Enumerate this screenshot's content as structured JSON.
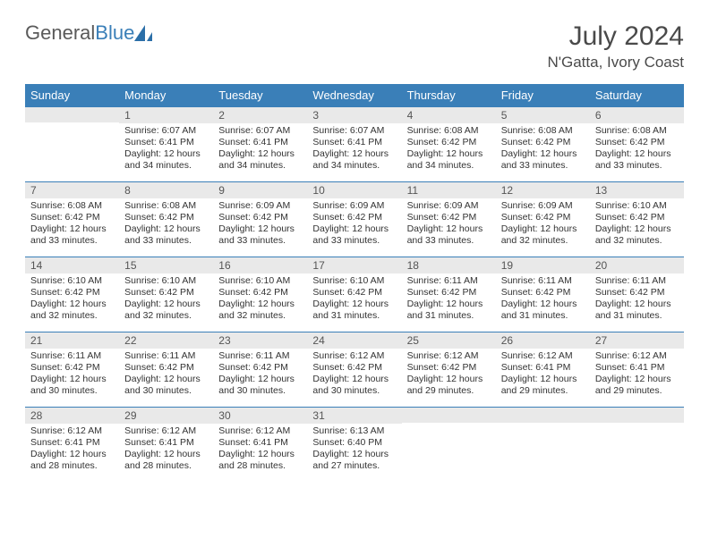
{
  "brand": {
    "part1": "General",
    "part2": "Blue"
  },
  "title": "July 2024",
  "location": "N'Gatta, Ivory Coast",
  "colors": {
    "header_bg": "#3a7fb8",
    "daynum_bg": "#e9e9e9",
    "text": "#333333",
    "title_text": "#4a4a4a",
    "rule": "#3a7fb8"
  },
  "weekdays": [
    "Sunday",
    "Monday",
    "Tuesday",
    "Wednesday",
    "Thursday",
    "Friday",
    "Saturday"
  ],
  "weeks": [
    [
      {
        "n": "",
        "sr": "",
        "ss": "",
        "dl": ""
      },
      {
        "n": "1",
        "sr": "Sunrise: 6:07 AM",
        "ss": "Sunset: 6:41 PM",
        "dl": "Daylight: 12 hours and 34 minutes."
      },
      {
        "n": "2",
        "sr": "Sunrise: 6:07 AM",
        "ss": "Sunset: 6:41 PM",
        "dl": "Daylight: 12 hours and 34 minutes."
      },
      {
        "n": "3",
        "sr": "Sunrise: 6:07 AM",
        "ss": "Sunset: 6:41 PM",
        "dl": "Daylight: 12 hours and 34 minutes."
      },
      {
        "n": "4",
        "sr": "Sunrise: 6:08 AM",
        "ss": "Sunset: 6:42 PM",
        "dl": "Daylight: 12 hours and 34 minutes."
      },
      {
        "n": "5",
        "sr": "Sunrise: 6:08 AM",
        "ss": "Sunset: 6:42 PM",
        "dl": "Daylight: 12 hours and 33 minutes."
      },
      {
        "n": "6",
        "sr": "Sunrise: 6:08 AM",
        "ss": "Sunset: 6:42 PM",
        "dl": "Daylight: 12 hours and 33 minutes."
      }
    ],
    [
      {
        "n": "7",
        "sr": "Sunrise: 6:08 AM",
        "ss": "Sunset: 6:42 PM",
        "dl": "Daylight: 12 hours and 33 minutes."
      },
      {
        "n": "8",
        "sr": "Sunrise: 6:08 AM",
        "ss": "Sunset: 6:42 PM",
        "dl": "Daylight: 12 hours and 33 minutes."
      },
      {
        "n": "9",
        "sr": "Sunrise: 6:09 AM",
        "ss": "Sunset: 6:42 PM",
        "dl": "Daylight: 12 hours and 33 minutes."
      },
      {
        "n": "10",
        "sr": "Sunrise: 6:09 AM",
        "ss": "Sunset: 6:42 PM",
        "dl": "Daylight: 12 hours and 33 minutes."
      },
      {
        "n": "11",
        "sr": "Sunrise: 6:09 AM",
        "ss": "Sunset: 6:42 PM",
        "dl": "Daylight: 12 hours and 33 minutes."
      },
      {
        "n": "12",
        "sr": "Sunrise: 6:09 AM",
        "ss": "Sunset: 6:42 PM",
        "dl": "Daylight: 12 hours and 32 minutes."
      },
      {
        "n": "13",
        "sr": "Sunrise: 6:10 AM",
        "ss": "Sunset: 6:42 PM",
        "dl": "Daylight: 12 hours and 32 minutes."
      }
    ],
    [
      {
        "n": "14",
        "sr": "Sunrise: 6:10 AM",
        "ss": "Sunset: 6:42 PM",
        "dl": "Daylight: 12 hours and 32 minutes."
      },
      {
        "n": "15",
        "sr": "Sunrise: 6:10 AM",
        "ss": "Sunset: 6:42 PM",
        "dl": "Daylight: 12 hours and 32 minutes."
      },
      {
        "n": "16",
        "sr": "Sunrise: 6:10 AM",
        "ss": "Sunset: 6:42 PM",
        "dl": "Daylight: 12 hours and 32 minutes."
      },
      {
        "n": "17",
        "sr": "Sunrise: 6:10 AM",
        "ss": "Sunset: 6:42 PM",
        "dl": "Daylight: 12 hours and 31 minutes."
      },
      {
        "n": "18",
        "sr": "Sunrise: 6:11 AM",
        "ss": "Sunset: 6:42 PM",
        "dl": "Daylight: 12 hours and 31 minutes."
      },
      {
        "n": "19",
        "sr": "Sunrise: 6:11 AM",
        "ss": "Sunset: 6:42 PM",
        "dl": "Daylight: 12 hours and 31 minutes."
      },
      {
        "n": "20",
        "sr": "Sunrise: 6:11 AM",
        "ss": "Sunset: 6:42 PM",
        "dl": "Daylight: 12 hours and 31 minutes."
      }
    ],
    [
      {
        "n": "21",
        "sr": "Sunrise: 6:11 AM",
        "ss": "Sunset: 6:42 PM",
        "dl": "Daylight: 12 hours and 30 minutes."
      },
      {
        "n": "22",
        "sr": "Sunrise: 6:11 AM",
        "ss": "Sunset: 6:42 PM",
        "dl": "Daylight: 12 hours and 30 minutes."
      },
      {
        "n": "23",
        "sr": "Sunrise: 6:11 AM",
        "ss": "Sunset: 6:42 PM",
        "dl": "Daylight: 12 hours and 30 minutes."
      },
      {
        "n": "24",
        "sr": "Sunrise: 6:12 AM",
        "ss": "Sunset: 6:42 PM",
        "dl": "Daylight: 12 hours and 30 minutes."
      },
      {
        "n": "25",
        "sr": "Sunrise: 6:12 AM",
        "ss": "Sunset: 6:42 PM",
        "dl": "Daylight: 12 hours and 29 minutes."
      },
      {
        "n": "26",
        "sr": "Sunrise: 6:12 AM",
        "ss": "Sunset: 6:41 PM",
        "dl": "Daylight: 12 hours and 29 minutes."
      },
      {
        "n": "27",
        "sr": "Sunrise: 6:12 AM",
        "ss": "Sunset: 6:41 PM",
        "dl": "Daylight: 12 hours and 29 minutes."
      }
    ],
    [
      {
        "n": "28",
        "sr": "Sunrise: 6:12 AM",
        "ss": "Sunset: 6:41 PM",
        "dl": "Daylight: 12 hours and 28 minutes."
      },
      {
        "n": "29",
        "sr": "Sunrise: 6:12 AM",
        "ss": "Sunset: 6:41 PM",
        "dl": "Daylight: 12 hours and 28 minutes."
      },
      {
        "n": "30",
        "sr": "Sunrise: 6:12 AM",
        "ss": "Sunset: 6:41 PM",
        "dl": "Daylight: 12 hours and 28 minutes."
      },
      {
        "n": "31",
        "sr": "Sunrise: 6:13 AM",
        "ss": "Sunset: 6:40 PM",
        "dl": "Daylight: 12 hours and 27 minutes."
      },
      {
        "n": "",
        "sr": "",
        "ss": "",
        "dl": ""
      },
      {
        "n": "",
        "sr": "",
        "ss": "",
        "dl": ""
      },
      {
        "n": "",
        "sr": "",
        "ss": "",
        "dl": ""
      }
    ]
  ]
}
